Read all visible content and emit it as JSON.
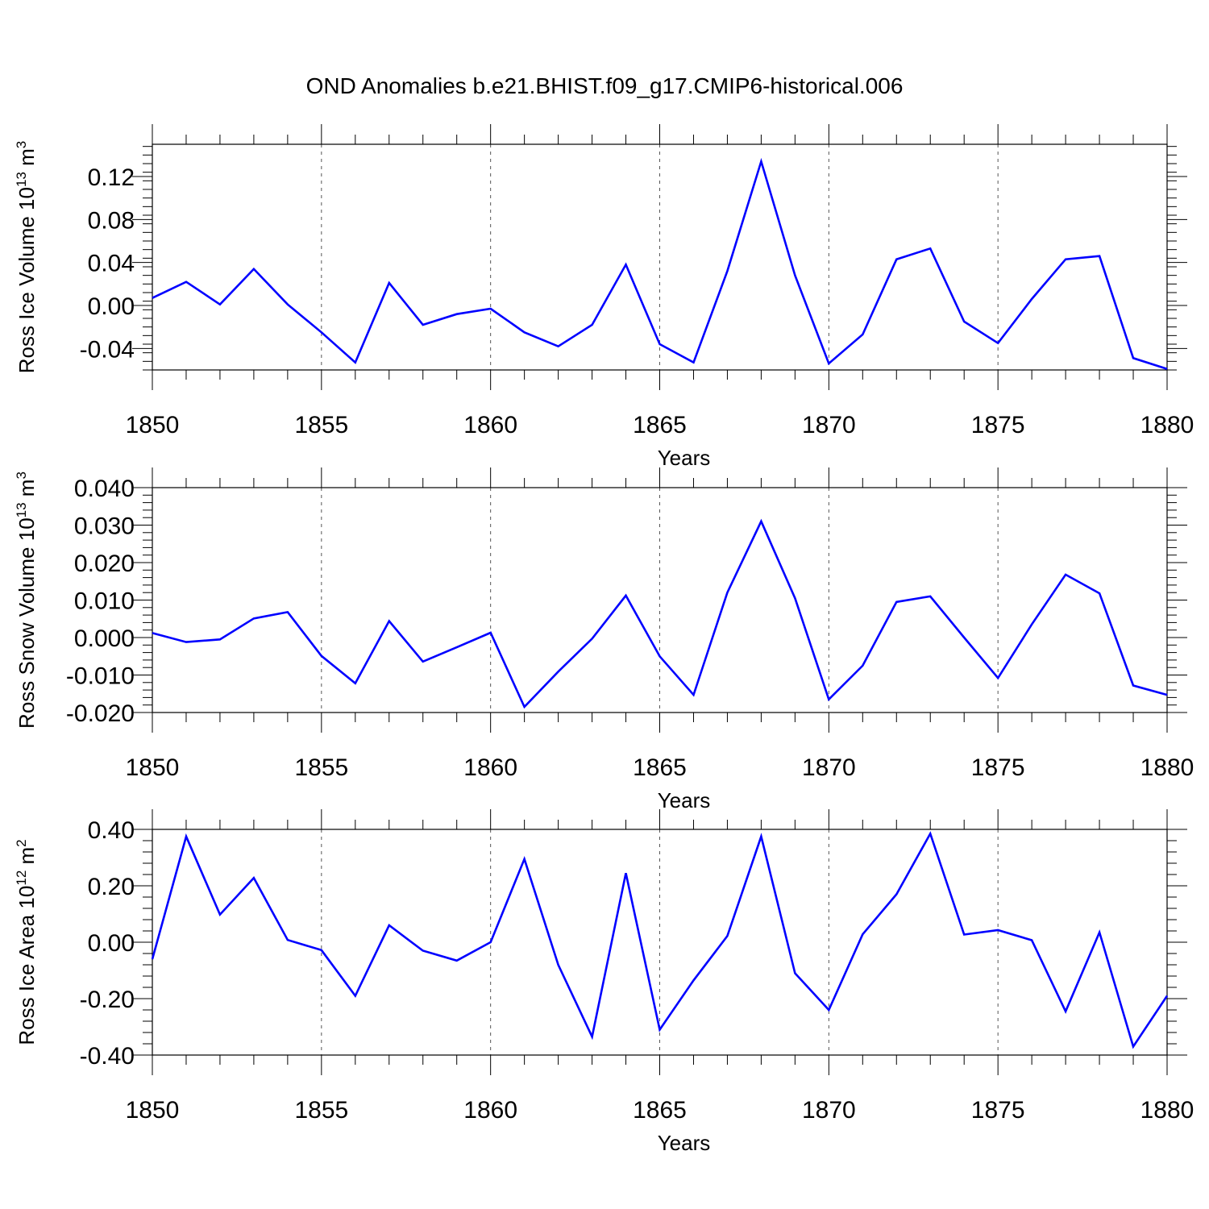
{
  "title": "OND Anomalies b.e21.BHIST.f09_g17.CMIP6-historical.006",
  "colors": {
    "series": "#0000ff",
    "frame": "#000000",
    "grid": "#555555"
  },
  "chart_data": [
    {
      "type": "line",
      "xlabel": "Years",
      "ylabel": {
        "main": "Ross Ice Volume 10",
        "exp": "13",
        "unit": " m",
        "unit_exp": "3"
      },
      "xlim": [
        1850,
        1880
      ],
      "ylim": [
        -0.06,
        0.15
      ],
      "xticks": [
        1850,
        1855,
        1860,
        1865,
        1870,
        1875,
        1880
      ],
      "xtick_labels": [
        "1850",
        "1855",
        "1860",
        "1865",
        "1870",
        "1875",
        "1880"
      ],
      "yticks": [
        -0.04,
        0.0,
        0.04,
        0.08,
        0.12
      ],
      "ytick_labels": [
        "-0.04",
        "0.00",
        "0.04",
        "0.08",
        "0.12"
      ],
      "ymin_minor_step": 0.008,
      "grid_x": [
        1855,
        1860,
        1865,
        1870,
        1875
      ],
      "series": [
        {
          "x": [
            1850,
            1851,
            1852,
            1853,
            1854,
            1855,
            1856,
            1857,
            1858,
            1859,
            1860,
            1861,
            1862,
            1863,
            1864,
            1865,
            1866,
            1867,
            1868,
            1869,
            1870,
            1871,
            1872,
            1873,
            1874,
            1875,
            1876,
            1877,
            1878,
            1879,
            1880
          ],
          "values": [
            0.007,
            0.022,
            0.001,
            0.034,
            0.001,
            -0.025,
            -0.053,
            0.021,
            -0.018,
            -0.008,
            -0.003,
            -0.025,
            -0.038,
            -0.018,
            0.038,
            -0.036,
            -0.053,
            0.032,
            0.134,
            0.028,
            -0.054,
            -0.027,
            0.043,
            0.053,
            -0.015,
            -0.035,
            0.006,
            0.043,
            0.046,
            -0.049,
            -0.059
          ]
        }
      ]
    },
    {
      "type": "line",
      "xlabel": "Years",
      "ylabel": {
        "main": "Ross Snow Volume 10",
        "exp": "13",
        "unit": " m",
        "unit_exp": "3"
      },
      "xlim": [
        1850,
        1880
      ],
      "ylim": [
        -0.02,
        0.04
      ],
      "xticks": [
        1850,
        1855,
        1860,
        1865,
        1870,
        1875,
        1880
      ],
      "xtick_labels": [
        "1850",
        "1855",
        "1860",
        "1865",
        "1870",
        "1875",
        "1880"
      ],
      "yticks": [
        -0.02,
        -0.01,
        0.0,
        0.01,
        0.02,
        0.03,
        0.04
      ],
      "ytick_labels": [
        "-0.020",
        "-0.010",
        "0.000",
        "0.010",
        "0.020",
        "0.030",
        "0.040"
      ],
      "ymin_minor_step": 0.002,
      "grid_x": [
        1855,
        1860,
        1865,
        1870,
        1875
      ],
      "series": [
        {
          "x": [
            1850,
            1851,
            1852,
            1853,
            1854,
            1855,
            1856,
            1857,
            1858,
            1859,
            1860,
            1861,
            1862,
            1863,
            1864,
            1865,
            1866,
            1867,
            1868,
            1869,
            1870,
            1871,
            1872,
            1873,
            1874,
            1875,
            1876,
            1877,
            1878,
            1879,
            1880
          ],
          "values": [
            0.0012,
            -0.0012,
            -0.0005,
            0.0051,
            0.0068,
            -0.0049,
            -0.0122,
            0.0044,
            -0.0064,
            -0.0026,
            0.0013,
            -0.0185,
            -0.0091,
            -0.0003,
            0.0112,
            -0.005,
            -0.0153,
            0.012,
            0.031,
            0.0105,
            -0.0165,
            -0.0075,
            0.0095,
            0.011,
            0.0,
            -0.0108,
            0.0035,
            0.0168,
            0.0118,
            -0.0128,
            -0.0153
          ]
        }
      ]
    },
    {
      "type": "line",
      "xlabel": "Years",
      "ylabel": {
        "main": "Ross Ice Area 10",
        "exp": "12",
        "unit": " m",
        "unit_exp": "2"
      },
      "xlim": [
        1850,
        1880
      ],
      "ylim": [
        -0.4,
        0.4
      ],
      "xticks": [
        1850,
        1855,
        1860,
        1865,
        1870,
        1875,
        1880
      ],
      "xtick_labels": [
        "1850",
        "1855",
        "1860",
        "1865",
        "1870",
        "1875",
        "1880"
      ],
      "yticks": [
        -0.4,
        -0.2,
        0.0,
        0.2,
        0.4
      ],
      "ytick_labels": [
        "-0.40",
        "-0.20",
        "0.00",
        "0.20",
        "0.40"
      ],
      "ymin_minor_step": 0.04,
      "grid_x": [
        1855,
        1860,
        1865,
        1870,
        1875
      ],
      "series": [
        {
          "x": [
            1850,
            1851,
            1852,
            1853,
            1854,
            1855,
            1856,
            1857,
            1858,
            1859,
            1860,
            1861,
            1862,
            1863,
            1864,
            1865,
            1866,
            1867,
            1868,
            1869,
            1870,
            1871,
            1872,
            1873,
            1874,
            1875,
            1876,
            1877,
            1878,
            1879,
            1880
          ],
          "values": [
            -0.06,
            0.375,
            0.098,
            0.228,
            0.008,
            -0.028,
            -0.19,
            0.06,
            -0.03,
            -0.065,
            0.0,
            0.295,
            -0.08,
            -0.335,
            0.245,
            -0.31,
            -0.135,
            0.022,
            0.375,
            -0.11,
            -0.24,
            0.028,
            0.17,
            0.385,
            0.027,
            0.043,
            0.007,
            -0.245,
            0.035,
            -0.37,
            -0.19
          ]
        }
      ]
    }
  ]
}
